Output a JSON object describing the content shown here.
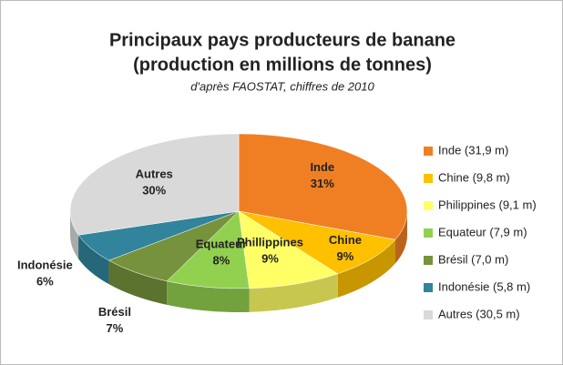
{
  "chart_data": {
    "type": "pie3d",
    "title": [
      "Principaux pays producteurs de banane",
      "(production en millions de tonnes)"
    ],
    "subtitle": "d'après FAOSTAT, chiffres de 2010",
    "categories": [
      "Inde",
      "Chine",
      "Phillippines",
      "Equateur",
      "Brésil",
      "Indonésie",
      "Autres"
    ],
    "values": [
      31,
      9,
      9,
      8,
      7,
      6,
      30
    ],
    "value_labels": [
      "31%",
      "9%",
      "9%",
      "8%",
      "7%",
      "6%",
      "30%"
    ],
    "legend": [
      "Inde (31,9 m)",
      "Chine (9,8 m)",
      "Philippines (9,1 m)",
      "Equateur (7,9 m)",
      "Brésil (7,0 m)",
      "Indonésie (5,8 m)",
      "Autres (30,5 m)"
    ],
    "colors": [
      "#f07f24",
      "#ffc000",
      "#ffff66",
      "#92d050",
      "#76923c",
      "#31849b",
      "#d9d9d9"
    ],
    "legend_position": "right"
  }
}
